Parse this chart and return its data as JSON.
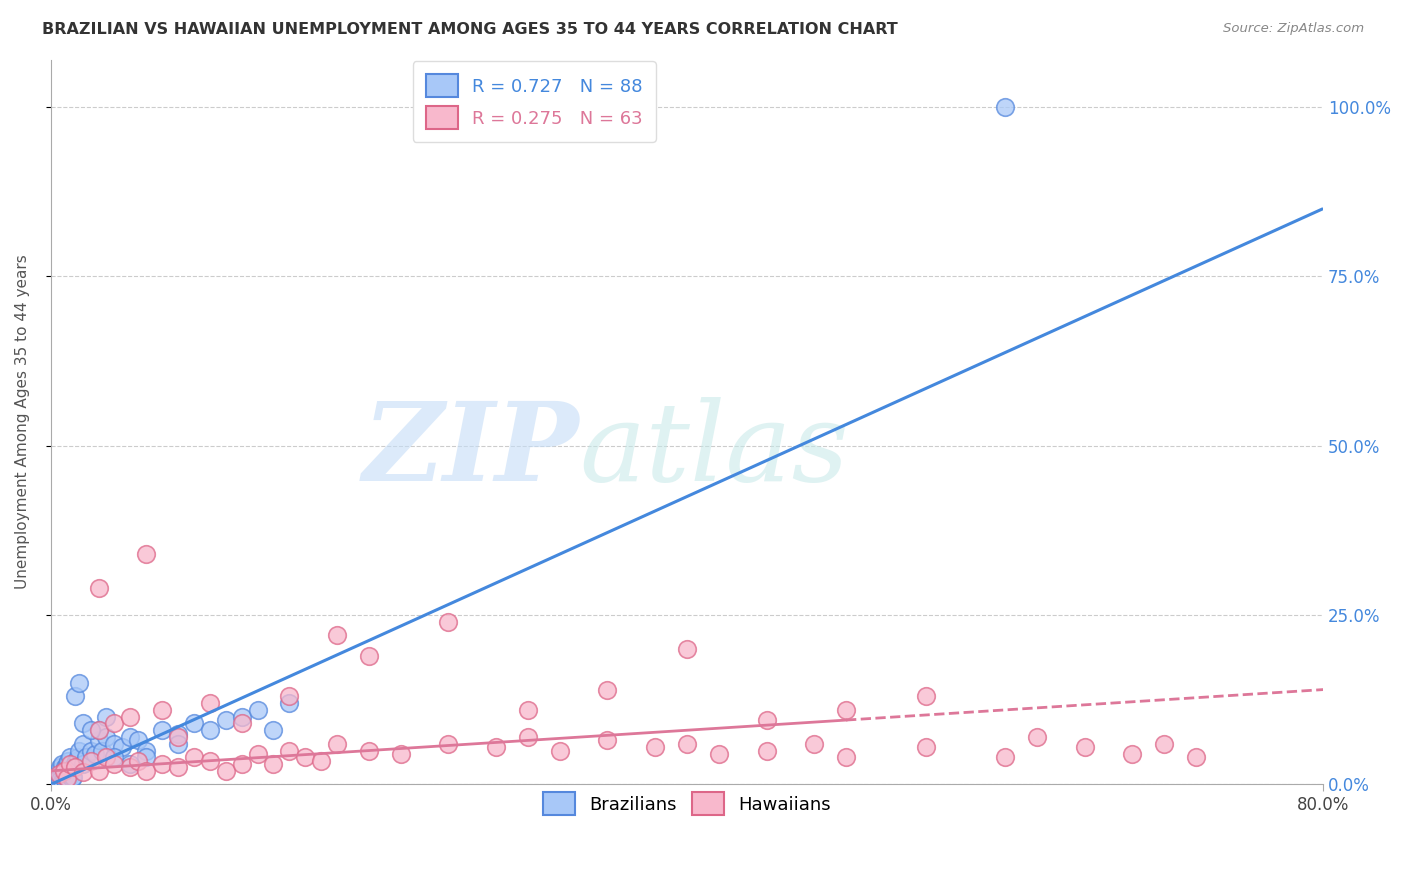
{
  "title": "BRAZILIAN VS HAWAIIAN UNEMPLOYMENT AMONG AGES 35 TO 44 YEARS CORRELATION CHART",
  "source": "Source: ZipAtlas.com",
  "ylabel": "Unemployment Among Ages 35 to 44 years",
  "ytick_labels": [
    "0.0%",
    "25.0%",
    "50.0%",
    "75.0%",
    "100.0%"
  ],
  "ytick_values": [
    0,
    25,
    50,
    75,
    100
  ],
  "xlim": [
    0,
    80
  ],
  "ylim": [
    0,
    107
  ],
  "brazil_color": "#a8c8f8",
  "brazil_edge_color": "#5588dd",
  "hawaii_color": "#f8b8cc",
  "hawaii_edge_color": "#dd6688",
  "brazil_line_color": "#4488dd",
  "hawaii_line_color": "#dd7799",
  "brazil_scatter": [
    [
      0.1,
      0.2
    ],
    [
      0.1,
      0.3
    ],
    [
      0.1,
      0.5
    ],
    [
      0.1,
      0.8
    ],
    [
      0.2,
      0.1
    ],
    [
      0.2,
      0.4
    ],
    [
      0.2,
      0.6
    ],
    [
      0.2,
      1.0
    ],
    [
      0.3,
      0.2
    ],
    [
      0.3,
      0.7
    ],
    [
      0.3,
      1.2
    ],
    [
      0.4,
      0.3
    ],
    [
      0.4,
      0.8
    ],
    [
      0.4,
      1.5
    ],
    [
      0.5,
      0.4
    ],
    [
      0.5,
      1.0
    ],
    [
      0.5,
      2.0
    ],
    [
      0.6,
      0.5
    ],
    [
      0.6,
      1.3
    ],
    [
      0.6,
      2.5
    ],
    [
      0.7,
      0.6
    ],
    [
      0.7,
      1.5
    ],
    [
      0.7,
      3.0
    ],
    [
      0.8,
      0.8
    ],
    [
      0.8,
      2.0
    ],
    [
      0.9,
      1.0
    ],
    [
      0.9,
      2.5
    ],
    [
      1.0,
      1.2
    ],
    [
      1.0,
      3.0
    ],
    [
      1.1,
      1.5
    ],
    [
      1.1,
      3.5
    ],
    [
      1.2,
      1.8
    ],
    [
      1.2,
      4.0
    ],
    [
      1.3,
      2.0
    ],
    [
      1.4,
      2.5
    ],
    [
      1.5,
      3.0
    ],
    [
      1.6,
      3.5
    ],
    [
      1.7,
      4.0
    ],
    [
      1.8,
      5.0
    ],
    [
      2.0,
      3.0
    ],
    [
      2.0,
      6.0
    ],
    [
      2.2,
      4.0
    ],
    [
      2.5,
      5.0
    ],
    [
      2.8,
      4.5
    ],
    [
      3.0,
      6.5
    ],
    [
      3.0,
      8.0
    ],
    [
      3.2,
      5.0
    ],
    [
      3.5,
      7.0
    ],
    [
      4.0,
      6.0
    ],
    [
      4.5,
      5.5
    ],
    [
      5.0,
      7.0
    ],
    [
      5.5,
      6.5
    ],
    [
      6.0,
      5.0
    ],
    [
      7.0,
      8.0
    ],
    [
      8.0,
      7.5
    ],
    [
      9.0,
      9.0
    ],
    [
      10.0,
      8.0
    ],
    [
      11.0,
      9.5
    ],
    [
      12.0,
      10.0
    ],
    [
      13.0,
      11.0
    ],
    [
      14.0,
      8.0
    ],
    [
      15.0,
      12.0
    ],
    [
      1.5,
      13.0
    ],
    [
      1.8,
      15.0
    ],
    [
      0.1,
      0.1
    ],
    [
      0.1,
      0.2
    ],
    [
      0.2,
      0.3
    ],
    [
      0.3,
      0.4
    ],
    [
      0.4,
      0.6
    ],
    [
      0.5,
      0.3
    ],
    [
      0.6,
      0.7
    ],
    [
      0.7,
      0.5
    ],
    [
      0.8,
      0.9
    ],
    [
      0.9,
      0.6
    ],
    [
      1.0,
      0.8
    ],
    [
      1.1,
      1.0
    ],
    [
      1.2,
      1.2
    ],
    [
      1.3,
      0.9
    ],
    [
      1.4,
      1.1
    ],
    [
      60.0,
      100.0
    ],
    [
      2.0,
      9.0
    ],
    [
      2.5,
      8.0
    ],
    [
      3.5,
      10.0
    ],
    [
      4.0,
      4.0
    ],
    [
      5.0,
      3.0
    ],
    [
      6.0,
      4.0
    ],
    [
      8.0,
      6.0
    ]
  ],
  "hawaii_scatter": [
    [
      0.5,
      1.5
    ],
    [
      0.8,
      2.0
    ],
    [
      1.0,
      1.0
    ],
    [
      1.2,
      3.0
    ],
    [
      1.5,
      2.5
    ],
    [
      2.0,
      1.8
    ],
    [
      2.5,
      3.5
    ],
    [
      3.0,
      2.0
    ],
    [
      3.5,
      4.0
    ],
    [
      4.0,
      3.0
    ],
    [
      5.0,
      2.5
    ],
    [
      5.5,
      3.5
    ],
    [
      6.0,
      2.0
    ],
    [
      7.0,
      3.0
    ],
    [
      8.0,
      2.5
    ],
    [
      9.0,
      4.0
    ],
    [
      10.0,
      3.5
    ],
    [
      11.0,
      2.0
    ],
    [
      12.0,
      3.0
    ],
    [
      13.0,
      4.5
    ],
    [
      14.0,
      3.0
    ],
    [
      15.0,
      5.0
    ],
    [
      16.0,
      4.0
    ],
    [
      17.0,
      3.5
    ],
    [
      18.0,
      6.0
    ],
    [
      20.0,
      5.0
    ],
    [
      22.0,
      4.5
    ],
    [
      25.0,
      6.0
    ],
    [
      28.0,
      5.5
    ],
    [
      30.0,
      7.0
    ],
    [
      32.0,
      5.0
    ],
    [
      35.0,
      6.5
    ],
    [
      38.0,
      5.5
    ],
    [
      40.0,
      6.0
    ],
    [
      42.0,
      4.5
    ],
    [
      45.0,
      5.0
    ],
    [
      48.0,
      6.0
    ],
    [
      50.0,
      4.0
    ],
    [
      55.0,
      5.5
    ],
    [
      60.0,
      4.0
    ],
    [
      62.0,
      7.0
    ],
    [
      65.0,
      5.5
    ],
    [
      68.0,
      4.5
    ],
    [
      70.0,
      6.0
    ],
    [
      72.0,
      4.0
    ],
    [
      3.0,
      8.0
    ],
    [
      4.0,
      9.0
    ],
    [
      5.0,
      10.0
    ],
    [
      7.0,
      11.0
    ],
    [
      8.0,
      7.0
    ],
    [
      10.0,
      12.0
    ],
    [
      12.0,
      9.0
    ],
    [
      15.0,
      13.0
    ],
    [
      18.0,
      22.0
    ],
    [
      20.0,
      19.0
    ],
    [
      25.0,
      24.0
    ],
    [
      30.0,
      11.0
    ],
    [
      35.0,
      14.0
    ],
    [
      40.0,
      20.0
    ],
    [
      45.0,
      9.5
    ],
    [
      50.0,
      11.0
    ],
    [
      55.0,
      13.0
    ],
    [
      3.0,
      29.0
    ],
    [
      6.0,
      34.0
    ]
  ],
  "brazil_line": {
    "x0": 0,
    "y0": 0,
    "x1": 80,
    "y1": 85
  },
  "hawaii_line": {
    "x0": 0,
    "y0": 2.0,
    "x1": 80,
    "y1": 14.0
  }
}
